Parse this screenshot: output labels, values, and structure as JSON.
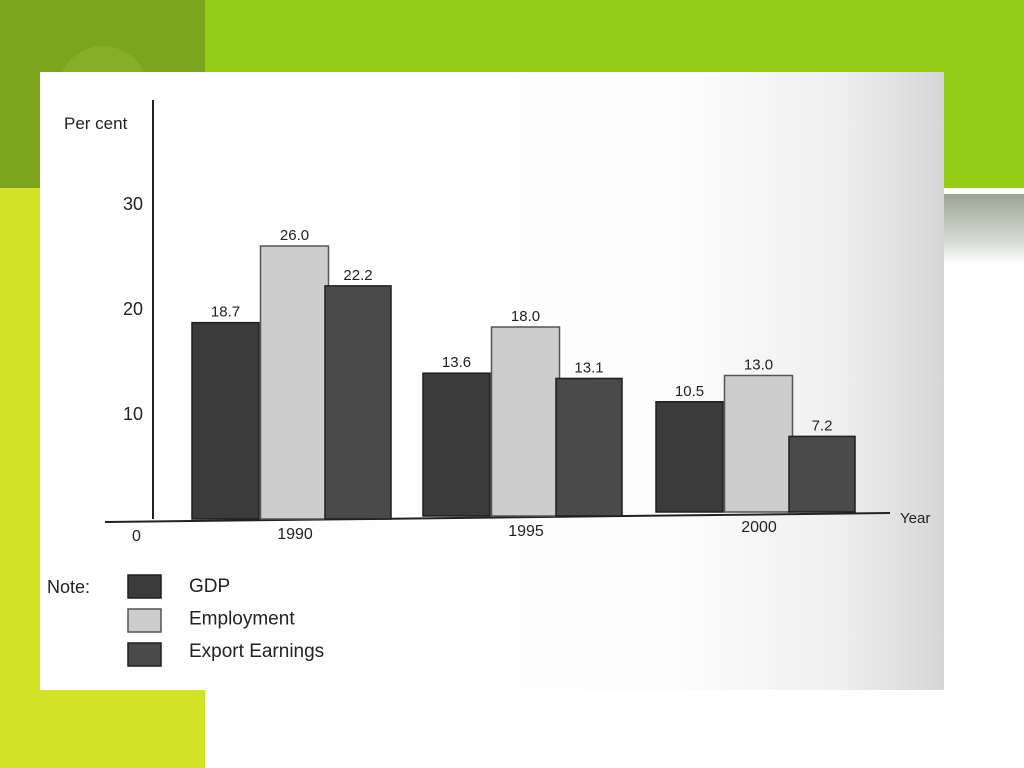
{
  "colors": {
    "gdp": "#3b3b3b",
    "employment": "#cdcdcd",
    "export_earnings": "#4a4a4a"
  },
  "chart_data": {
    "type": "bar",
    "ylabel": "Per cent",
    "xlabel": "Year",
    "origin_label": "0",
    "ylim": [
      0,
      30
    ],
    "yticks": [
      "10",
      "20",
      "30"
    ],
    "categories": [
      "1990",
      "1995",
      "2000"
    ],
    "series": [
      {
        "name": "GDP",
        "values": [
          18.7,
          13.6,
          10.5
        ]
      },
      {
        "name": "Employment",
        "values": [
          26.0,
          18.0,
          13.0
        ]
      },
      {
        "name": "Export Earnings",
        "values": [
          22.2,
          13.1,
          7.2
        ]
      }
    ],
    "data_labels": [
      [
        "18.7",
        "13.6",
        "10.5"
      ],
      [
        "26.0",
        "18.0",
        "13.0"
      ],
      [
        "22.2",
        "13.1",
        "7.2"
      ]
    ],
    "legend_title": "Note:",
    "legend_placement": "bottom-left",
    "grid": false
  }
}
